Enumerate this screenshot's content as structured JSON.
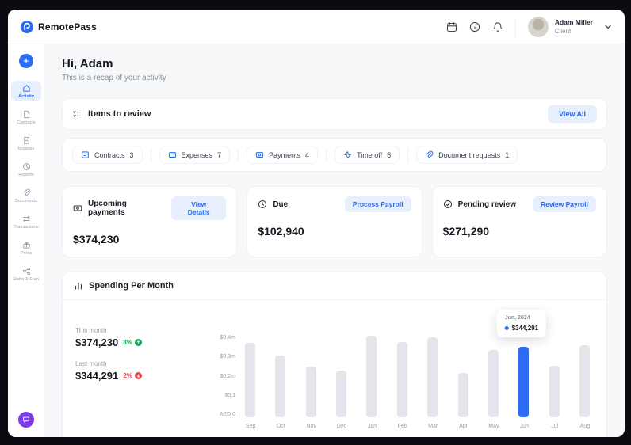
{
  "header": {
    "brand": "RemotePass",
    "user": {
      "name": "Adam Miller",
      "role": "Client"
    }
  },
  "sidebar": {
    "items": [
      {
        "label": "Activity"
      },
      {
        "label": "Contracts"
      },
      {
        "label": "Invoices"
      },
      {
        "label": "Reports"
      },
      {
        "label": "Documents"
      },
      {
        "label": "Transactions"
      },
      {
        "label": "Perks"
      },
      {
        "label": "Refer & Earn"
      }
    ]
  },
  "greeting": {
    "title": "Hi, Adam",
    "subtitle": "This is a recap of your activity"
  },
  "review": {
    "title": "Items to review",
    "view_all": "View All",
    "chips": [
      {
        "label": "Contracts",
        "count": "3"
      },
      {
        "label": "Expenses",
        "count": "7"
      },
      {
        "label": "Payments",
        "count": "4"
      },
      {
        "label": "Time off",
        "count": "5"
      },
      {
        "label": "Document requests",
        "count": "1"
      }
    ]
  },
  "stats": [
    {
      "title": "Upcoming payments",
      "action": "View Details",
      "value": "$374,230"
    },
    {
      "title": "Due",
      "action": "Process Payroll",
      "value": "$102,940"
    },
    {
      "title": "Pending review",
      "action": "Review Payroll",
      "value": "$271,290"
    }
  ],
  "spending": {
    "title": "Spending Per Month",
    "this_month_label": "This month",
    "this_month_value": "$374,230",
    "this_month_change": "8%",
    "last_month_label": "Last month",
    "last_month_value": "$344,291",
    "last_month_change": "2%",
    "tooltip": {
      "label": "Jun, 2024",
      "value": "$344,291"
    }
  },
  "chart_data": {
    "type": "bar",
    "title": "Spending Per Month",
    "categories": [
      "Sep",
      "Oct",
      "Nov",
      "Dec",
      "Jan",
      "Feb",
      "Mar",
      "Apr",
      "May",
      "Jun",
      "Jul",
      "Aug"
    ],
    "values": [
      0.36,
      0.3,
      0.245,
      0.225,
      0.395,
      0.365,
      0.39,
      0.215,
      0.325,
      0.344,
      0.25,
      0.35
    ],
    "unit": "millions AED",
    "highlight_index": 9,
    "highlight_value_label": "$344,291",
    "y_ticks": [
      "$0.4m",
      "$0.3m",
      "$0.2m",
      "$0.1",
      "AED 0"
    ],
    "ylim": [
      0,
      0.4
    ],
    "grid": false,
    "colors": {
      "bar": "#e3e5ea",
      "highlight": "#2b6cf0"
    }
  },
  "colors": {
    "accent": "#2b6cf0",
    "accent_light": "#e7effd",
    "positive": "#12a454",
    "negative": "#e5484d",
    "support": "#7c3aed"
  }
}
